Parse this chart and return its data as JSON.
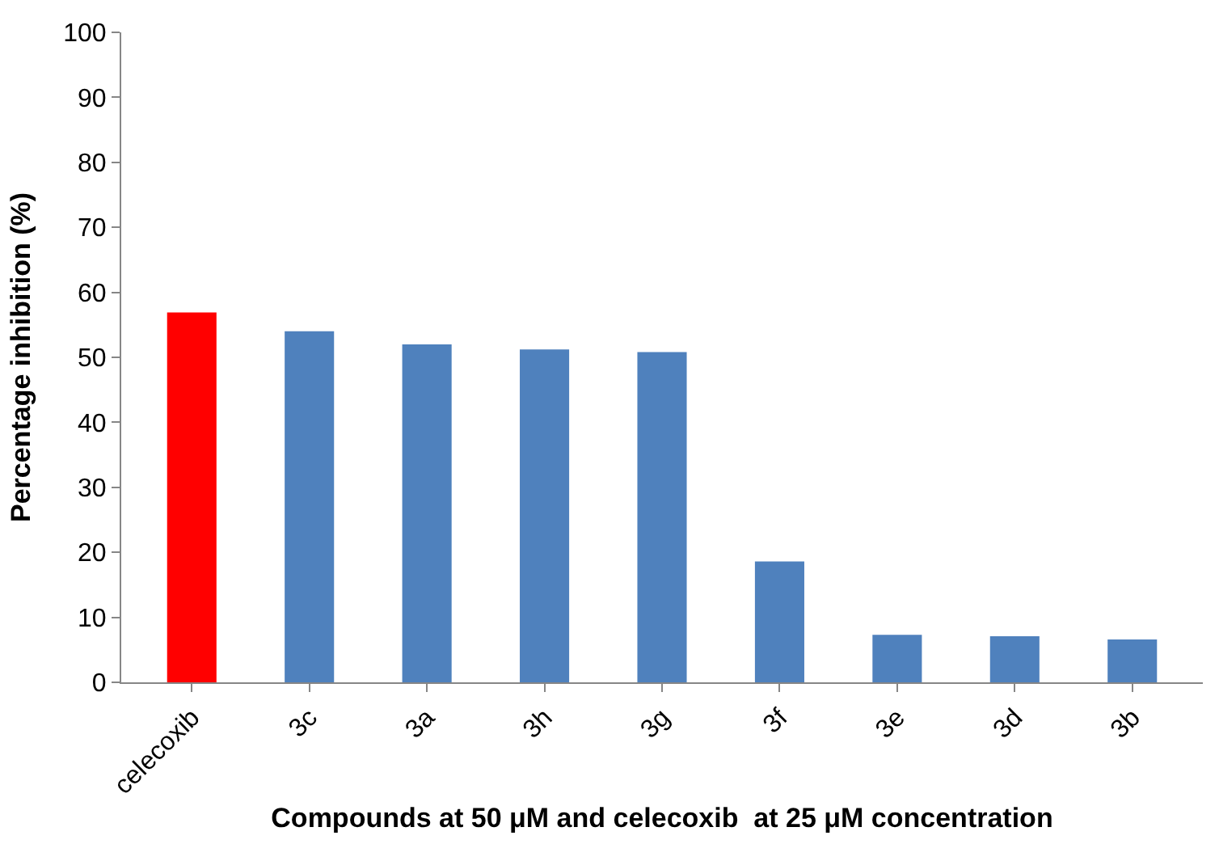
{
  "chart_data": {
    "type": "bar",
    "xlabel": "Compounds at 50 μM and celecoxib  at 25 μM concentration",
    "ylabel": "Percentage inhibition (%)",
    "categories": [
      "celecoxib",
      "3c",
      "3a",
      "3h",
      "3g",
      "3f",
      "3e",
      "3d",
      "3b"
    ],
    "values": [
      56.9,
      54,
      52,
      51.2,
      50.8,
      18.6,
      7.3,
      7.1,
      6.6
    ],
    "colors": [
      "#ff0000",
      "#4f81bd",
      "#4f81bd",
      "#4f81bd",
      "#4f81bd",
      "#4f81bd",
      "#4f81bd",
      "#4f81bd",
      "#4f81bd"
    ],
    "ylim": [
      0,
      100
    ],
    "yticks": [
      0,
      10,
      20,
      30,
      40,
      50,
      60,
      70,
      80,
      90,
      100
    ]
  }
}
